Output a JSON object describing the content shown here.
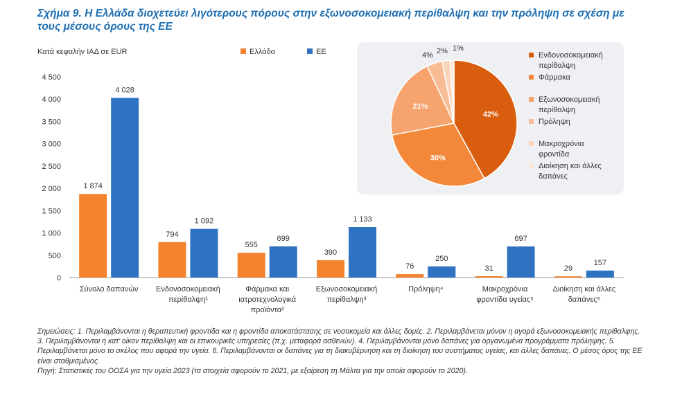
{
  "title": "Σχήμα 9. Η Ελλάδα διοχετεύει λιγότερους πόρους στην εξωνοσοκομειακή περίθαλψη και την πρόληψη σε σχέση με τους μέσους όρους της ΕΕ",
  "chart_data": [
    {
      "type": "bar",
      "ylabel": "Κατά κεφαλήν ΙΑΔ σε EUR",
      "ylim": [
        0,
        4500
      ],
      "yticks": [
        "0",
        "500",
        "1 000",
        "1 500",
        "2 000",
        "2 500",
        "3 000",
        "3 500",
        "4 000",
        "4 500"
      ],
      "grid": false,
      "legend_position": "top",
      "categories": [
        [
          "Σύνολο δαπανών"
        ],
        [
          "Ενδονοσοκομειακή",
          "περίθαλψη¹"
        ],
        [
          "Φάρμακα και",
          "ιατροτεχνολογικά",
          "προϊόντα²"
        ],
        [
          "Εξωνοσοκομειακή",
          "περίθαλψη³"
        ],
        [
          "Πρόληψη⁴"
        ],
        [
          "Μακροχρόνια",
          "φροντίδα υγείας⁵"
        ],
        [
          "Διοίκηση και άλλες",
          "δαπάνες⁶"
        ]
      ],
      "series": [
        {
          "name": "Ελλάδα",
          "color": "#f4832e",
          "values": [
            1874,
            794,
            555,
            390,
            76,
            31,
            29
          ],
          "labels": [
            "1 874",
            "794",
            "555",
            "390",
            "76",
            "31",
            "29"
          ]
        },
        {
          "name": "ΕΕ",
          "color": "#2f72c2",
          "values": [
            4028,
            1092,
            699,
            1133,
            250,
            697,
            157
          ],
          "labels": [
            "4 028",
            "1 092",
            "699",
            "1 133",
            "250",
            "697",
            "157"
          ]
        }
      ]
    },
    {
      "type": "pie",
      "slices": [
        {
          "label": "Ενδονοσοκομειακή περίθαλψη",
          "value": 42,
          "text": "42%",
          "color": "#d95d0e"
        },
        {
          "label": "Φάρμακα",
          "value": 30,
          "text": "30%",
          "color": "#f4883a"
        },
        {
          "label": "Εξωνοσοκομειακή περίθαλψη",
          "value": 21,
          "text": "21%",
          "color": "#f6a36e"
        },
        {
          "label": "Πρόληψη",
          "value": 4,
          "text": "4%",
          "color": "#f8bd94"
        },
        {
          "label": "Μακροχρόνια φροντίδα",
          "value": 2,
          "text": "2%",
          "color": "#fbd5bb"
        },
        {
          "label": "Διοίκηση και άλλες δαπάνες",
          "value": 1,
          "text": "1%",
          "color": "#fde7d7"
        }
      ],
      "legend_lines": [
        [
          "Ενδονοσοκομειακή",
          "περίθαλψη"
        ],
        [
          "Φάρμακα"
        ],
        [
          "Εξωνοσοκομειακή",
          "περίθαλψη"
        ],
        [
          "Πρόληψη"
        ],
        [
          "Μακροχρόνια",
          "φροντίδα"
        ],
        [
          "Διοίκηση και άλλες",
          "δαπάνες"
        ]
      ],
      "legend_position": "right"
    }
  ],
  "notes": [
    "Σημειώσεις: 1. Περιλαμβάνονται η θεραπευτική φροντίδα και η φροντίδα αποκατάστασης σε νοσοκομεία και άλλες δομές. 2. Περιλαμβάνεται μόνον η αγορά εξωνοσοκομειακής περίθαλψης. 3. Περιλαμβάνονται η κατ’ οίκον περίθαλψη και οι επικουρικές υπηρεσίες (π.χ. μεταφορά ασθενών). 4. Περιλαμβάνονται μόνο δαπάνες για οργανωμένα προγράμματα πρόληψης. 5. Περιλαμβάνεται μόνο το σκέλος που αφορά την υγεία. 6. Περιλαμβάνονται οι δαπάνες για τη διακυβέρνηση και τη διοίκηση του συστήματος υγείας, και άλλες δαπάνες. Ο μέσος όρος της ΕΕ είναι σταθμισμένος.",
    "Πηγή: Στατιστικές του ΟΟΣΑ για την υγεία 2023 (τα στοιχεία αφορούν το 2021, με εξαίρεση τη Μάλτα για την οποία αφορούν το 2020)."
  ]
}
